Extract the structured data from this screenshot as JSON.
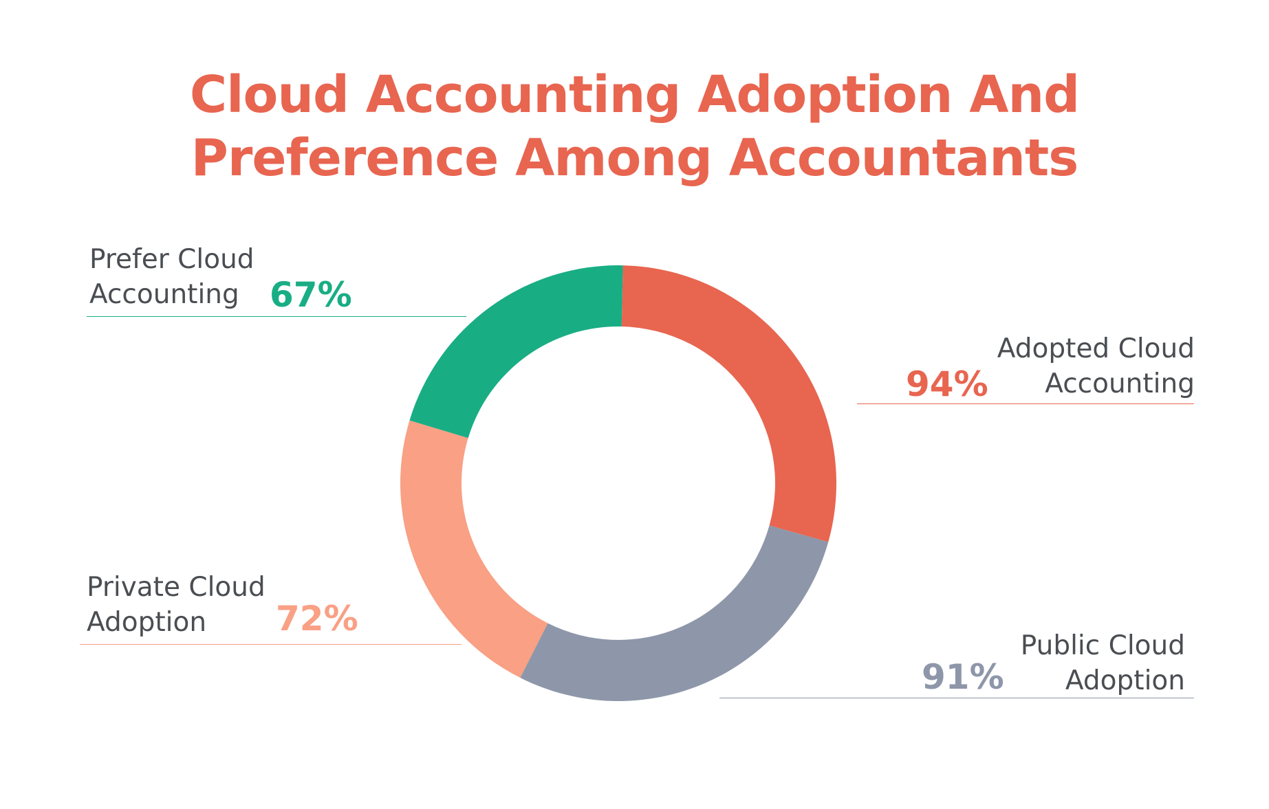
{
  "chart_data": {
    "type": "pie",
    "variant": "donut",
    "title_lines": [
      "Cloud Accounting Adoption And",
      "Preference Among Accountants"
    ],
    "categories": [
      "Adopted Cloud Accounting",
      "Public Cloud Adoption",
      "Private Cloud Adoption",
      "Prefer Cloud Accounting"
    ],
    "values": [
      94,
      91,
      72,
      67
    ],
    "series": [
      {
        "label_lines": [
          "Adopted Cloud",
          "Accounting"
        ],
        "value": 94,
        "value_label": "94%",
        "color": "#e86550"
      },
      {
        "label_lines": [
          "Public Cloud",
          "Adoption"
        ],
        "value": 91,
        "value_label": "91%",
        "color": "#8e97a9"
      },
      {
        "label_lines": [
          "Private Cloud",
          "Adoption"
        ],
        "value": 72,
        "value_label": "72%",
        "color": "#f9a085"
      },
      {
        "label_lines": [
          "Prefer Cloud",
          "Accounting"
        ],
        "value": 67,
        "value_label": "67%",
        "color": "#19ad84"
      }
    ],
    "legend": "none",
    "grid": false
  },
  "colors": {
    "title": "#e86550",
    "label_text": "#4a4d52",
    "background": "#ffffff"
  }
}
